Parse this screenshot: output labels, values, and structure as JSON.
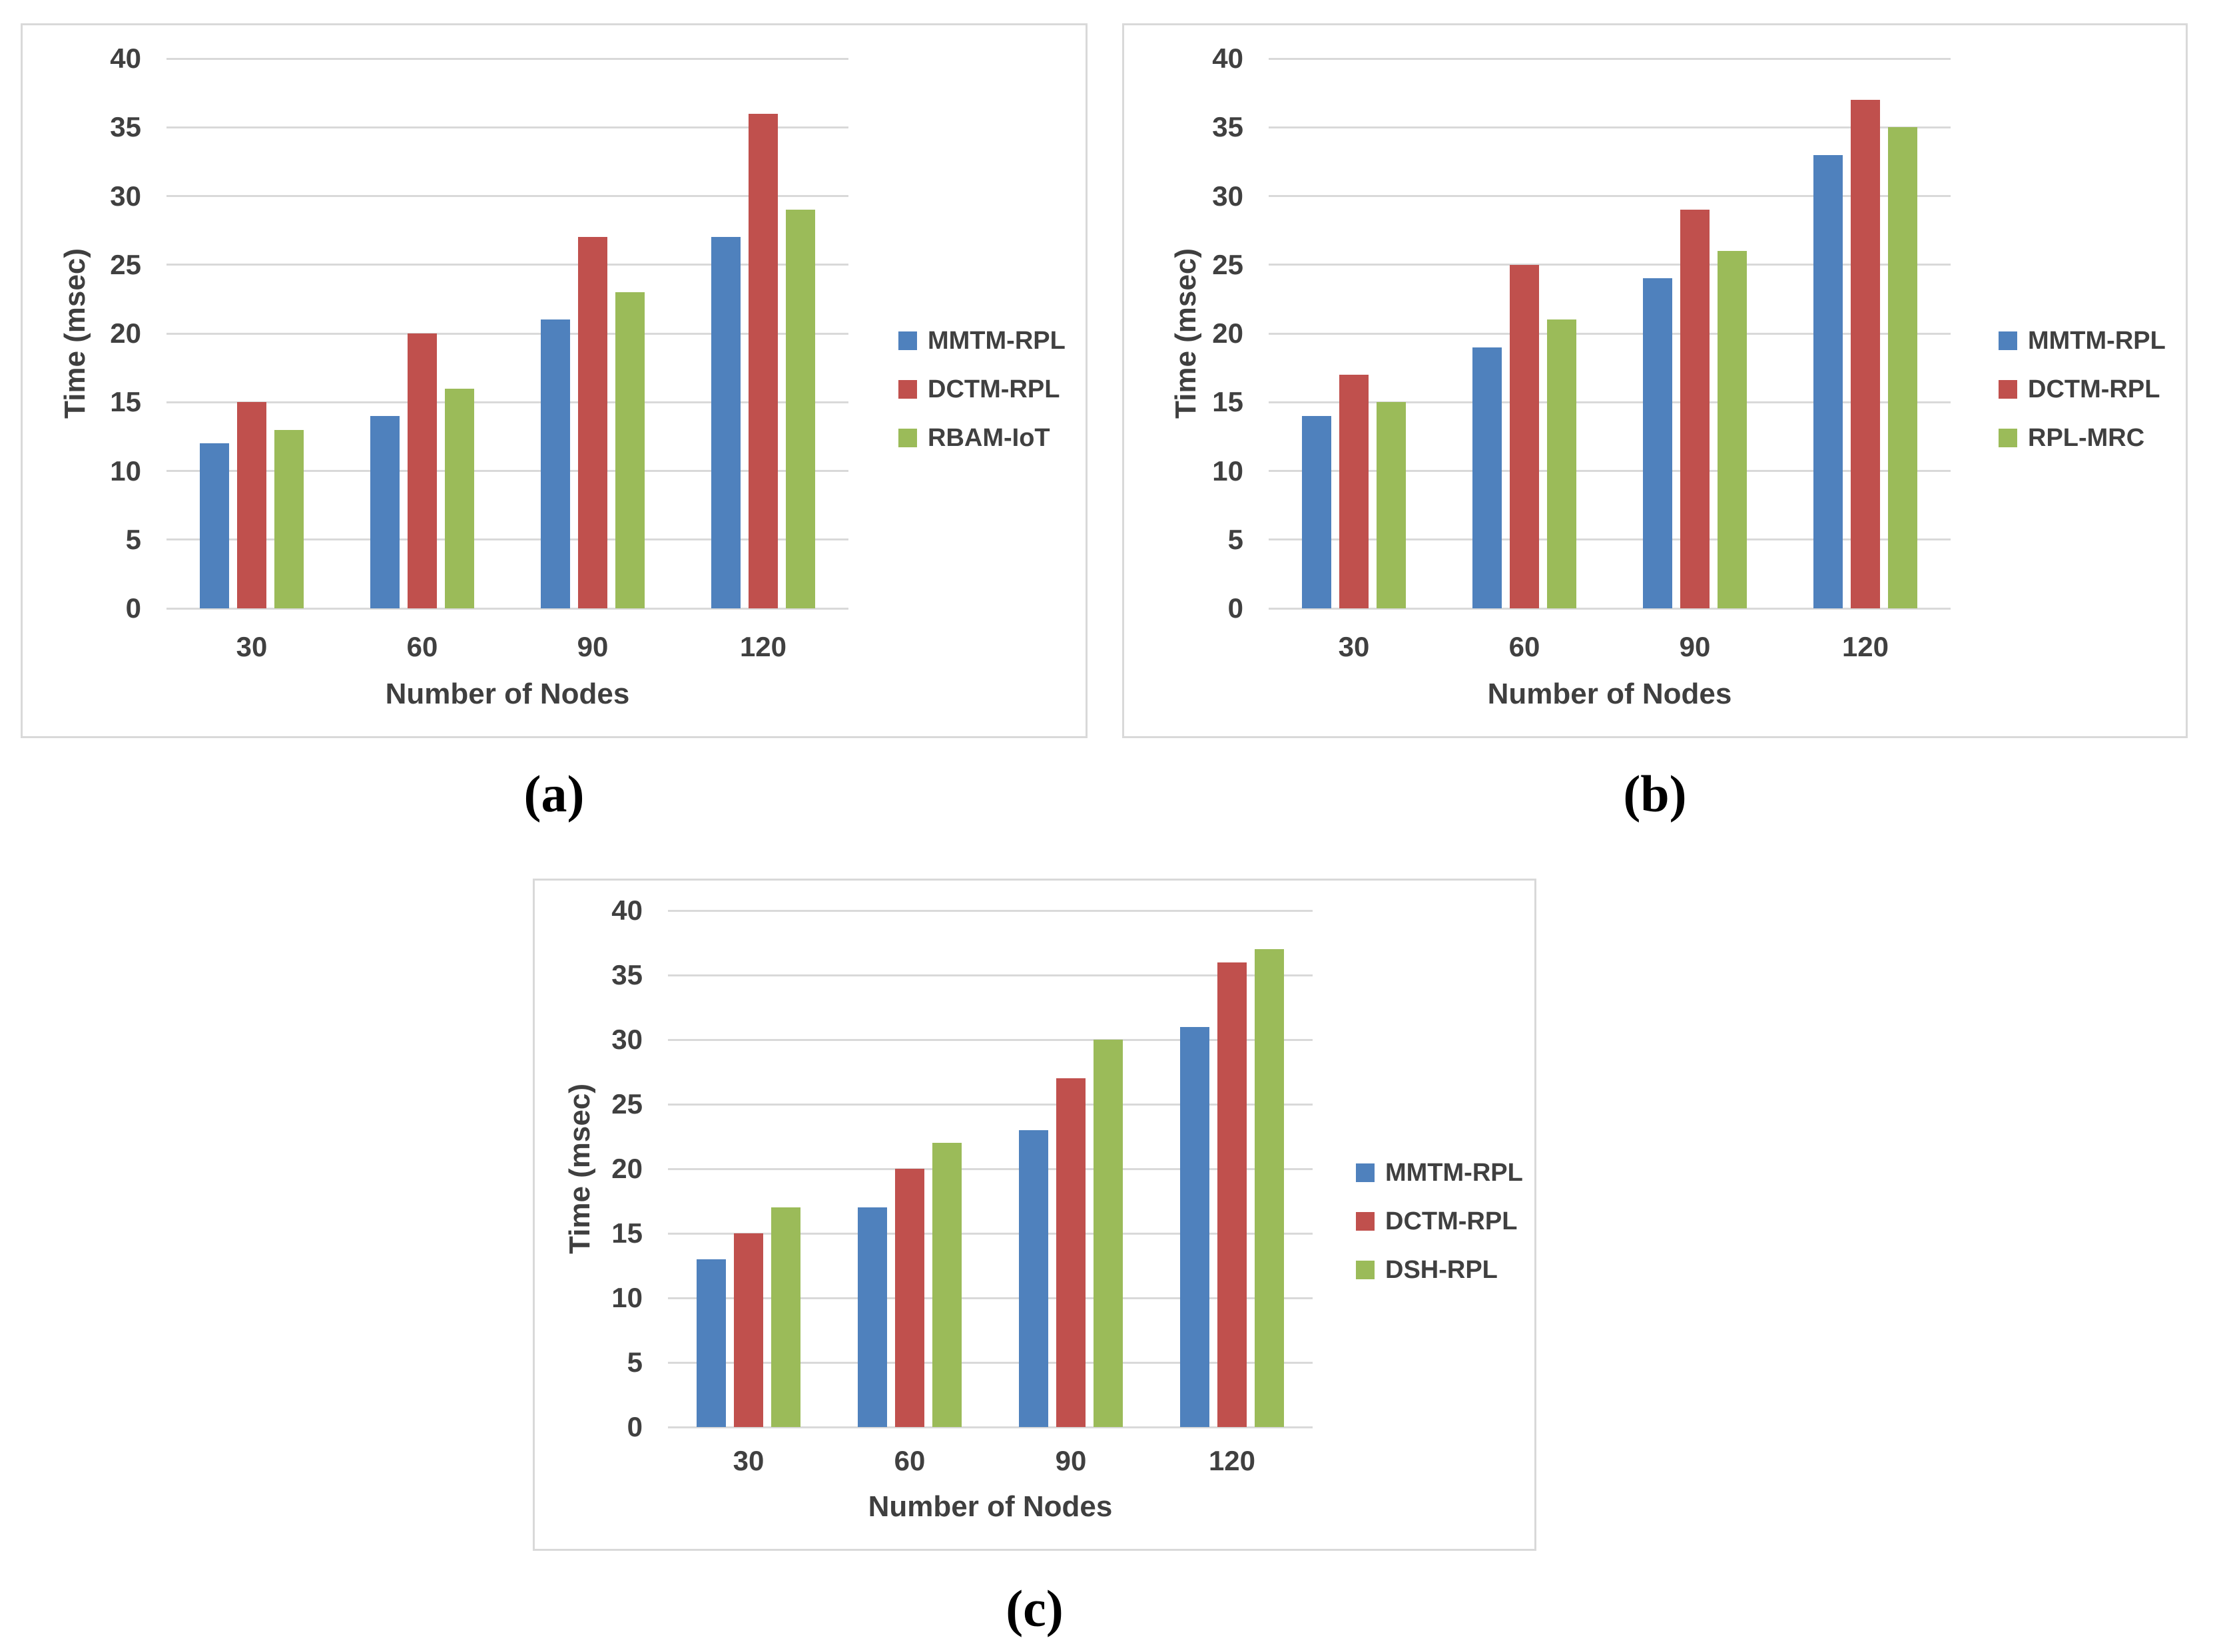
{
  "chart_data": [
    {
      "type": "bar",
      "caption": "(a)",
      "xlabel": "Number of Nodes",
      "ylabel": "Time (msec)",
      "categories": [
        "30",
        "60",
        "90",
        "120"
      ],
      "series": [
        {
          "name": "MMTM-RPL",
          "color": "#4F81BD",
          "values": [
            12,
            14,
            21,
            27
          ]
        },
        {
          "name": "DCTM-RPL",
          "color": "#C0504D",
          "values": [
            15,
            20,
            27,
            36
          ]
        },
        {
          "name": "RBAM-IoT",
          "color": "#9BBB59",
          "values": [
            13,
            16,
            23,
            29
          ]
        }
      ],
      "ylim": [
        0,
        40
      ],
      "ytick_step": 5,
      "grid": true,
      "legend_position": "right"
    },
    {
      "type": "bar",
      "caption": "(b)",
      "xlabel": "Number of Nodes",
      "ylabel": "Time (msec)",
      "categories": [
        "30",
        "60",
        "90",
        "120"
      ],
      "series": [
        {
          "name": "MMTM-RPL",
          "color": "#4F81BD",
          "values": [
            14,
            19,
            24,
            33
          ]
        },
        {
          "name": "DCTM-RPL",
          "color": "#C0504D",
          "values": [
            17,
            25,
            29,
            37
          ]
        },
        {
          "name": "RPL-MRC",
          "color": "#9BBB59",
          "values": [
            15,
            21,
            26,
            35
          ]
        }
      ],
      "ylim": [
        0,
        40
      ],
      "ytick_step": 5,
      "grid": true,
      "legend_position": "right"
    },
    {
      "type": "bar",
      "caption": "(c)",
      "xlabel": "Number of Nodes",
      "ylabel": "Time (msec)",
      "categories": [
        "30",
        "60",
        "90",
        "120"
      ],
      "series": [
        {
          "name": "MMTM-RPL",
          "color": "#4F81BD",
          "values": [
            13,
            17,
            23,
            31
          ]
        },
        {
          "name": "DCTM-RPL",
          "color": "#C0504D",
          "values": [
            15,
            20,
            27,
            36
          ]
        },
        {
          "name": "DSH-RPL",
          "color": "#9BBB59",
          "values": [
            17,
            22,
            30,
            37
          ]
        }
      ],
      "ylim": [
        0,
        40
      ],
      "ytick_step": 5,
      "grid": true,
      "legend_position": "right"
    }
  ],
  "colors": {
    "series_blue": "#4F81BD",
    "series_red": "#C0504D",
    "series_green": "#9BBB59",
    "gridline": "#D9D9D9",
    "text": "#404040"
  }
}
